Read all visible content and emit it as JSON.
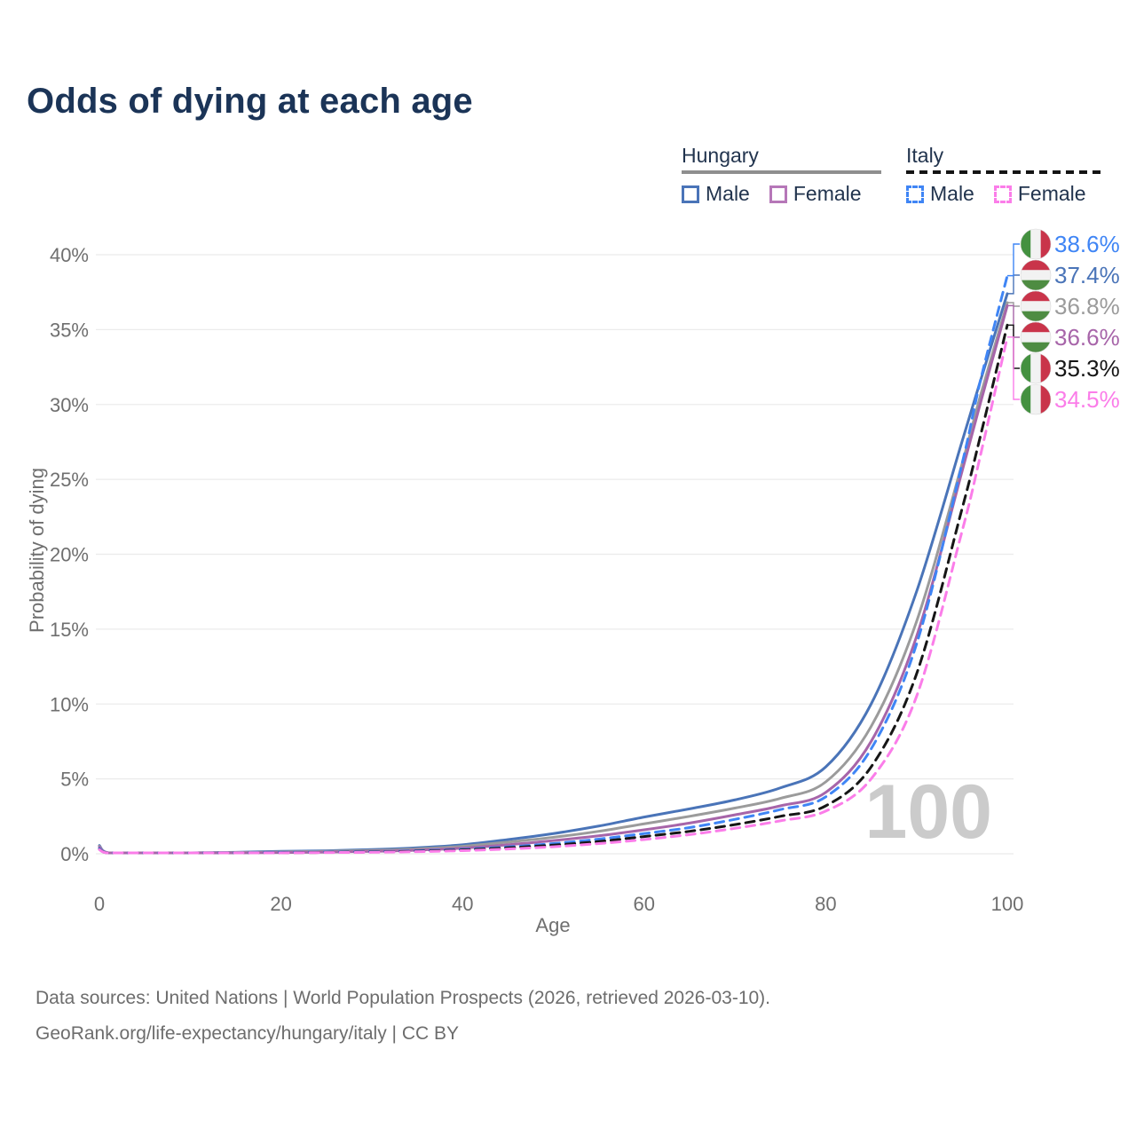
{
  "page_title": "Odds of dying at each age",
  "watermark": "100",
  "legend": {
    "groups": [
      {
        "id": "hungary",
        "label": "Hungary",
        "underline": "solid",
        "underline_color": "#8f8f8f",
        "items": [
          {
            "id": "hu-male",
            "label": "Male",
            "color": "#4a74b8",
            "dash": false
          },
          {
            "id": "hu-female",
            "label": "Female",
            "color": "#b677b8",
            "dash": false
          }
        ]
      },
      {
        "id": "italy",
        "label": "Italy",
        "underline": "dashed",
        "underline_color": "#141414",
        "items": [
          {
            "id": "it-male",
            "label": "Male",
            "color": "#3f85f5",
            "dash": true
          },
          {
            "id": "it-female",
            "label": "Female",
            "color": "#fb7de9",
            "dash": true
          }
        ]
      }
    ]
  },
  "axes": {
    "x_label": "Age",
    "y_label": "Probability of dying"
  },
  "footer": {
    "line1": "Data sources: United Nations | World Population Prospects (2026, retrieved 2026-03-10).",
    "line2": "GeoRank.org/life-expectancy/hungary/italy | CC BY"
  },
  "chart_data": {
    "type": "line",
    "title": "Odds of dying at each age",
    "xlabel": "Age",
    "ylabel": "Probability of dying",
    "xlim": [
      0,
      110
    ],
    "ylim": [
      0,
      40
    ],
    "xticks": [
      0,
      20,
      40,
      60,
      80,
      100
    ],
    "yticks": [
      0,
      5,
      10,
      15,
      20,
      25,
      30,
      35,
      40
    ],
    "ytick_suffix": "%",
    "grid": "horizontal",
    "grid_color": "#ebebeb",
    "tick_text_color": "#6f6f6f",
    "watermark_color": "#cbcbcb",
    "x": [
      0,
      1,
      5,
      10,
      15,
      20,
      25,
      30,
      35,
      40,
      45,
      50,
      55,
      60,
      65,
      70,
      75,
      80,
      85,
      90,
      95,
      97,
      100
    ],
    "series": [
      {
        "id": "hu-male",
        "name": "Hungary Male",
        "country": "hungary",
        "color": "#4a74b8",
        "dashed": false,
        "values": [
          0.55,
          0.06,
          0.05,
          0.06,
          0.1,
          0.16,
          0.2,
          0.28,
          0.4,
          0.6,
          0.95,
          1.35,
          1.85,
          2.45,
          3.0,
          3.6,
          4.4,
          5.8,
          10.0,
          17.5,
          27.5,
          31.5,
          37.4
        ],
        "end_label": {
          "text": "37.4%",
          "flag": "hungary",
          "row": 1
        }
      },
      {
        "id": "hu-total",
        "name": "Hungary (both sexes)",
        "country": "hungary",
        "color": "#9b9b9b",
        "dashed": false,
        "values": [
          0.5,
          0.05,
          0.04,
          0.05,
          0.08,
          0.12,
          0.16,
          0.22,
          0.32,
          0.5,
          0.78,
          1.1,
          1.5,
          2.0,
          2.5,
          3.05,
          3.7,
          4.8,
          8.5,
          15.5,
          26.0,
          30.5,
          36.8
        ],
        "end_label": {
          "text": "36.8%",
          "flag": "hungary",
          "row": 2
        }
      },
      {
        "id": "hu-female",
        "name": "Hungary Female",
        "country": "hungary",
        "color": "#a765a9",
        "dashed": false,
        "values": [
          0.45,
          0.05,
          0.04,
          0.04,
          0.06,
          0.08,
          0.11,
          0.16,
          0.24,
          0.38,
          0.6,
          0.88,
          1.2,
          1.6,
          2.05,
          2.6,
          3.2,
          4.1,
          7.5,
          14.5,
          25.5,
          30.0,
          36.6
        ],
        "end_label": {
          "text": "36.6%",
          "flag": "hungary",
          "row": 3
        }
      },
      {
        "id": "it-male",
        "name": "Italy Male",
        "country": "italy",
        "color": "#3f85f5",
        "dashed": true,
        "values": [
          0.35,
          0.04,
          0.03,
          0.04,
          0.06,
          0.09,
          0.11,
          0.14,
          0.2,
          0.3,
          0.46,
          0.68,
          0.98,
          1.35,
          1.75,
          2.3,
          2.95,
          3.8,
          7.0,
          14.0,
          26.0,
          31.5,
          38.6
        ],
        "end_label": {
          "text": "38.6%",
          "flag": "italy",
          "row": 0
        }
      },
      {
        "id": "it-total",
        "name": "Italy (both sexes)",
        "country": "italy",
        "color": "#161616",
        "dashed": true,
        "values": [
          0.3,
          0.03,
          0.03,
          0.03,
          0.05,
          0.07,
          0.09,
          0.12,
          0.17,
          0.26,
          0.4,
          0.58,
          0.82,
          1.15,
          1.5,
          1.95,
          2.5,
          3.2,
          5.8,
          12.0,
          23.0,
          27.8,
          35.3
        ],
        "end_label": {
          "text": "35.3%",
          "flag": "italy",
          "row": 4
        }
      },
      {
        "id": "it-female",
        "name": "Italy Female",
        "country": "italy",
        "color": "#fb7de9",
        "dashed": true,
        "values": [
          0.28,
          0.03,
          0.02,
          0.03,
          0.04,
          0.06,
          0.08,
          0.1,
          0.14,
          0.21,
          0.32,
          0.47,
          0.68,
          0.95,
          1.28,
          1.7,
          2.2,
          2.85,
          5.0,
          10.5,
          21.5,
          26.5,
          34.5
        ],
        "end_label": {
          "text": "34.5%",
          "flag": "italy",
          "row": 5
        }
      }
    ],
    "flag_colors": {
      "hungary": {
        "red": "#c9344a",
        "white": "#f2f2f2",
        "green": "#4e8c42"
      },
      "italy": {
        "green": "#449140",
        "white": "#f2f2f2",
        "red": "#c9344a"
      }
    },
    "legend_position": "top-right"
  }
}
